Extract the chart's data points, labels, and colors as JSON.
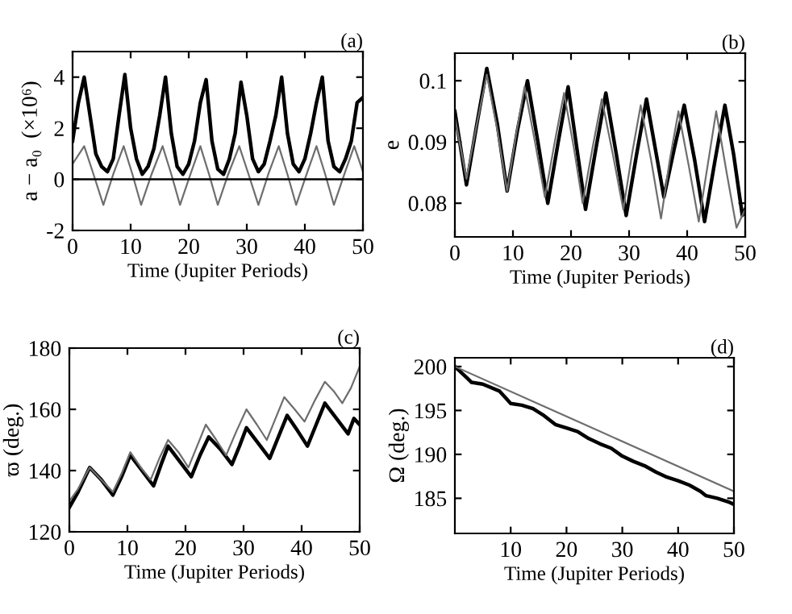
{
  "chart_data": [
    {
      "type": "line",
      "title": "(a)",
      "xlabel": "Time (Jupiter Periods)",
      "ylabel": "a − a₀  (×10⁶)",
      "xlim": [
        0,
        50
      ],
      "ylim": [
        -2,
        5
      ],
      "xticks": [
        0,
        10,
        20,
        30,
        40,
        50
      ],
      "yticks": [
        -2,
        0,
        2,
        4
      ],
      "grid": false,
      "legend": false,
      "ref_lines": [
        {
          "axis": "y",
          "value": 0,
          "color": "#000000"
        }
      ],
      "series": [
        {
          "color": "#000000",
          "x": [
            0,
            1,
            2,
            3,
            4,
            5,
            6,
            7,
            8,
            9,
            10,
            11,
            12,
            13,
            14,
            15,
            16,
            17,
            18,
            19,
            20,
            21,
            22,
            23,
            24,
            25,
            26,
            27,
            28,
            29,
            30,
            31,
            32,
            33,
            34,
            35,
            36,
            37,
            38,
            39,
            40,
            41,
            42,
            43,
            44,
            45,
            46,
            47,
            48,
            49,
            50
          ],
          "values": [
            1.5,
            3.0,
            4.0,
            2.5,
            1.0,
            0.5,
            0.3,
            0.8,
            2.5,
            4.1,
            2.0,
            0.8,
            0.2,
            0.5,
            1.2,
            2.5,
            4.0,
            1.8,
            0.5,
            0.2,
            0.6,
            1.5,
            3.0,
            3.9,
            1.5,
            0.4,
            0.2,
            0.8,
            1.8,
            3.8,
            2.5,
            0.8,
            0.3,
            0.6,
            1.5,
            2.5,
            4.0,
            1.8,
            0.6,
            0.3,
            0.8,
            1.8,
            3.0,
            4.0,
            1.5,
            0.5,
            0.3,
            0.8,
            1.5,
            3.0,
            3.2
          ]
        },
        {
          "color": "#6e6e6e",
          "x": [
            0,
            2,
            3.6,
            5.3,
            7,
            8.8,
            10.3,
            11.8,
            13.6,
            15.5,
            17,
            18.5,
            20.3,
            22,
            23.5,
            25,
            26.8,
            28.7,
            30.3,
            32,
            33.7,
            35.5,
            37,
            38.5,
            40.3,
            42,
            43.5,
            45,
            46.8,
            48.5,
            50
          ],
          "values": [
            0.6,
            1.3,
            0.2,
            -1.0,
            0.2,
            1.3,
            0.2,
            -1.0,
            0.2,
            1.3,
            0.2,
            -1.0,
            0.2,
            1.3,
            0.2,
            -1.0,
            0.2,
            1.3,
            0.2,
            -1.0,
            0.2,
            1.3,
            0.2,
            -1.0,
            0.2,
            1.3,
            0.2,
            -1.0,
            0.2,
            1.3,
            0.3
          ]
        }
      ]
    },
    {
      "type": "line",
      "title": "(b)",
      "xlabel": "Time (Jupiter Periods)",
      "ylabel": "e",
      "xlim": [
        0,
        50
      ],
      "ylim": [
        0.0745,
        0.1045
      ],
      "xticks": [
        0,
        10,
        20,
        30,
        40,
        50
      ],
      "yticks": [
        0.08,
        0.09,
        0.1
      ],
      "grid": false,
      "legend": false,
      "series": [
        {
          "color": "#000000",
          "x": [
            0,
            2,
            3.8,
            5.5,
            7.3,
            9,
            10.8,
            12.5,
            14.3,
            16,
            17.8,
            19.5,
            21,
            22.5,
            24.3,
            26,
            27.8,
            29.5,
            31.3,
            33,
            34.5,
            36,
            37.8,
            39.5,
            41.3,
            43,
            44.8,
            46.5,
            48,
            49.5,
            50
          ],
          "values": [
            0.095,
            0.083,
            0.093,
            0.102,
            0.093,
            0.082,
            0.092,
            0.1,
            0.09,
            0.08,
            0.09,
            0.099,
            0.089,
            0.079,
            0.089,
            0.098,
            0.088,
            0.078,
            0.088,
            0.097,
            0.089,
            0.081,
            0.089,
            0.096,
            0.087,
            0.077,
            0.087,
            0.096,
            0.088,
            0.078,
            0.079
          ]
        },
        {
          "color": "#6e6e6e",
          "x": [
            0,
            2,
            3.8,
            5.5,
            7.3,
            9,
            10.5,
            12,
            13.8,
            15.5,
            17.2,
            18.8,
            20.5,
            22,
            23.7,
            25.3,
            27.2,
            29,
            30.5,
            32,
            33.8,
            35.5,
            37,
            38.5,
            40.3,
            42,
            43.5,
            45,
            46.8,
            48.5,
            50
          ],
          "values": [
            0.094,
            0.084,
            0.093,
            0.101,
            0.092,
            0.082,
            0.091,
            0.099,
            0.09,
            0.081,
            0.09,
            0.098,
            0.089,
            0.08,
            0.089,
            0.097,
            0.088,
            0.079,
            0.088,
            0.096,
            0.087,
            0.0775,
            0.087,
            0.095,
            0.086,
            0.077,
            0.086,
            0.095,
            0.085,
            0.076,
            0.079
          ]
        }
      ]
    },
    {
      "type": "line",
      "title": "(c)",
      "xlabel": "Time (Jupiter Periods)",
      "ylabel": "ϖ (deg.)",
      "xlim": [
        0,
        50
      ],
      "ylim": [
        120,
        180
      ],
      "xticks": [
        0,
        10,
        20,
        30,
        40,
        50
      ],
      "yticks": [
        120,
        140,
        160,
        180
      ],
      "grid": false,
      "legend": false,
      "series": [
        {
          "color": "#000000",
          "x": [
            0,
            1.5,
            3.5,
            5.5,
            7.5,
            9,
            10.5,
            12.5,
            14.5,
            15.8,
            17,
            19,
            21,
            22.5,
            24,
            26,
            28,
            29.3,
            30.5,
            32.5,
            34.5,
            36,
            37.5,
            39.3,
            41,
            42.5,
            44,
            46,
            48,
            49,
            50
          ],
          "values": [
            128,
            133,
            141,
            137,
            132,
            138,
            145,
            140,
            135,
            142,
            148,
            143,
            138,
            145,
            151,
            147,
            142,
            148,
            154,
            149,
            144,
            151,
            158,
            153,
            148,
            155,
            162,
            157,
            152,
            157,
            155
          ]
        },
        {
          "color": "#6e6e6e",
          "x": [
            0,
            1.5,
            3.5,
            5.5,
            7.5,
            9,
            10.5,
            12.3,
            14,
            15.5,
            17,
            18.8,
            20.5,
            22,
            23.5,
            25.3,
            27,
            28.8,
            30.5,
            32.3,
            34,
            35.5,
            37,
            38.8,
            40.5,
            42.3,
            44,
            45.5,
            47,
            48.5,
            50
          ],
          "values": [
            130,
            134,
            141,
            137,
            133,
            139,
            146,
            141,
            137,
            144,
            150,
            146,
            141,
            148,
            155,
            150,
            145,
            153,
            160,
            155,
            150,
            157,
            164,
            160,
            156,
            163,
            169,
            166,
            162,
            167,
            174
          ]
        }
      ]
    },
    {
      "type": "line",
      "title": "(d)",
      "xlabel": "Time (Jupiter Periods)",
      "ylabel": "Ω (deg.)",
      "xlim": [
        0,
        50
      ],
      "ylim": [
        181,
        201
      ],
      "xticks": [
        10,
        20,
        30,
        40,
        50
      ],
      "yticks": [
        185,
        190,
        195,
        200
      ],
      "grid": false,
      "legend": false,
      "series": [
        {
          "color": "#000000",
          "x": [
            0,
            2,
            3,
            5,
            8,
            9,
            10,
            12,
            14,
            16,
            18,
            20,
            22,
            24,
            26,
            28,
            30,
            32,
            34,
            36,
            38,
            40,
            42,
            44,
            45,
            47,
            49,
            50
          ],
          "values": [
            200,
            198.8,
            198.2,
            198,
            197.2,
            196.5,
            195.8,
            195.6,
            195.2,
            194.4,
            193.4,
            193,
            192.6,
            191.8,
            191.2,
            190.7,
            189.8,
            189.2,
            188.7,
            188.0,
            187.4,
            187.0,
            186.5,
            185.8,
            185.3,
            185.0,
            184.6,
            184.3
          ]
        },
        {
          "color": "#6e6e6e",
          "x": [
            0,
            25,
            50
          ],
          "values": [
            200,
            192.9,
            185.8
          ]
        }
      ]
    }
  ]
}
